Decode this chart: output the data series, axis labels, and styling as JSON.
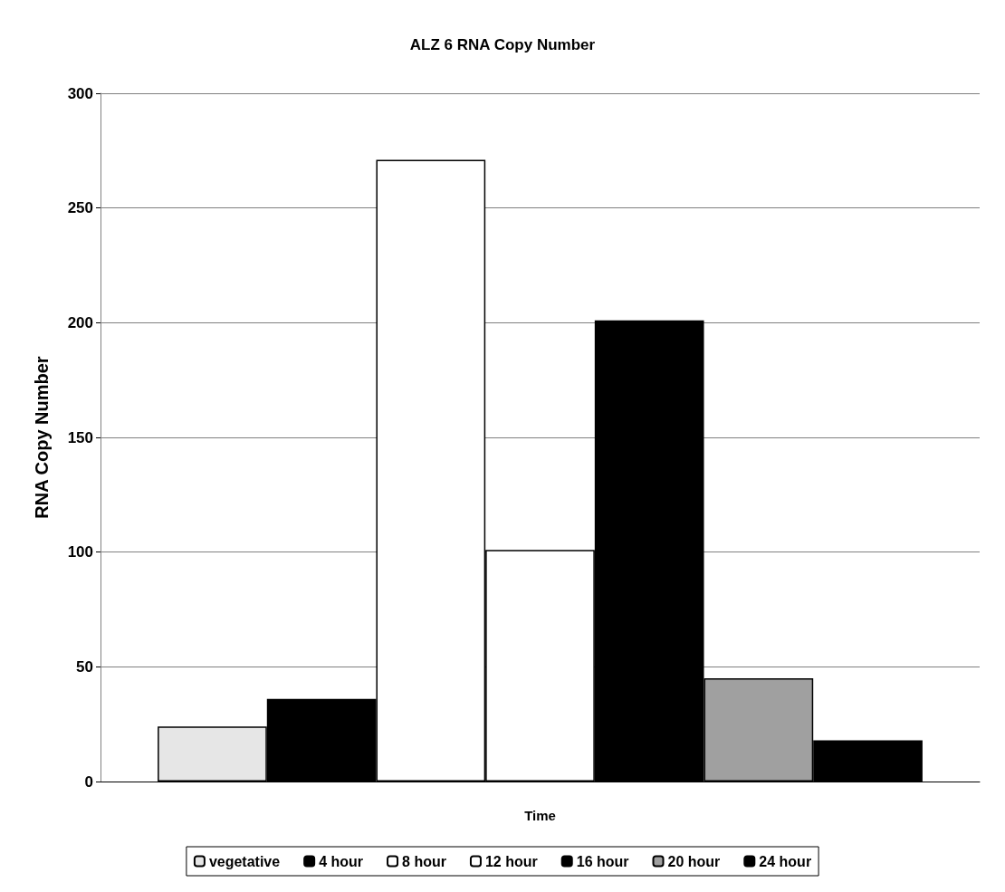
{
  "chart_data": {
    "type": "bar",
    "title": "ALZ 6 RNA Copy Number",
    "xlabel": "Time",
    "ylabel": "RNA Copy Number",
    "categories": [
      null
    ],
    "series": [
      {
        "name": "vegetative",
        "color": "#e6e6e6",
        "values": [
          24
        ]
      },
      {
        "name": "4 hour",
        "color": "#000000",
        "values": [
          36
        ]
      },
      {
        "name": "8 hour",
        "color": "#ffffff",
        "values": [
          271
        ]
      },
      {
        "name": "12 hour",
        "color": "#ffffff",
        "values": [
          101
        ]
      },
      {
        "name": "16 hour",
        "color": "#000000",
        "values": [
          201
        ]
      },
      {
        "name": "20 hour",
        "color": "#a0a0a0",
        "values": [
          45
        ]
      },
      {
        "name": "24 hour",
        "color": "#000000",
        "values": [
          18
        ]
      }
    ],
    "ylim": [
      0,
      300
    ],
    "yticks": [
      0,
      50,
      100,
      150,
      200,
      250,
      300
    ],
    "grid": "y",
    "legend": "bottom"
  }
}
